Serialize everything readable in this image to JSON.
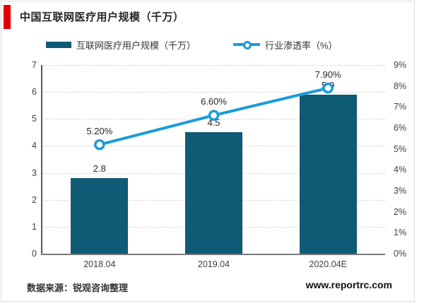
{
  "header": {
    "title": "中国互联网医疗用户规模（千万）",
    "accent_color": "#e60000"
  },
  "legend": [
    {
      "label": "互联网医疗用户规模（千万）",
      "marker": "bar-swatch",
      "color": "#0f5a74"
    },
    {
      "label": "行业渗透率（%）",
      "marker": "line-swatch",
      "color": "#1b9cd8"
    }
  ],
  "chart_data": {
    "type": "bar",
    "combo": "bar+line",
    "title": "中国互联网医疗用户规模（千万）",
    "categories": [
      "2018.04",
      "2019.04",
      "2020.04E"
    ],
    "series": [
      {
        "name": "互联网医疗用户规模（千万）",
        "type": "bar",
        "axis": "left",
        "color": "#0f5a74",
        "values": [
          2.8,
          4.5,
          5.9
        ],
        "labels": [
          "2.8",
          "4.5",
          "5.9"
        ]
      },
      {
        "name": "行业渗透率（%）",
        "type": "line",
        "axis": "right",
        "color": "#1b9cd8",
        "values": [
          5.2,
          6.6,
          7.9
        ],
        "labels": [
          "5.20%",
          "6.60%",
          "7.90%"
        ]
      }
    ],
    "left_axis": {
      "min": 0,
      "max": 7,
      "step": 1,
      "ticks": [
        "0",
        "1",
        "2",
        "3",
        "4",
        "5",
        "6",
        "7"
      ]
    },
    "right_axis": {
      "min": 0,
      "max": 9,
      "step": 1,
      "ticks": [
        "0%",
        "1%",
        "2%",
        "3%",
        "4%",
        "5%",
        "6%",
        "7%",
        "8%",
        "9%"
      ]
    },
    "grid": {
      "horizontal": true,
      "style": "dashed",
      "color": "#d9d9d9"
    },
    "legend_position": "top"
  },
  "footer": {
    "source": "数据来源：锐观咨询整理",
    "website": "www.reportrc.com"
  }
}
